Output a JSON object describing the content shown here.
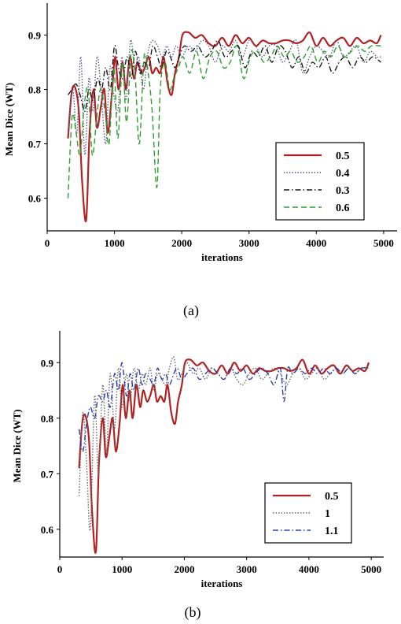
{
  "chart_data": [
    {
      "type": "line",
      "caption": "(a)",
      "xlabel": "iterations",
      "ylabel": "Mean Dice (WT)",
      "xlim": [
        0,
        5200
      ],
      "ylim": [
        0.54,
        0.95
      ],
      "xticks": [
        0,
        1000,
        2000,
        3000,
        4000,
        5000
      ],
      "yticks": [
        0.6,
        0.7,
        0.8,
        0.9
      ],
      "legend": "bottom-right",
      "series": [
        {
          "name": "0.5",
          "color": "#b22222",
          "dash": "solid",
          "x": [
            310,
            360,
            410,
            470,
            520,
            580,
            630,
            690,
            740,
            800,
            850,
            900,
            960,
            1010,
            1060,
            1120,
            1170,
            1230,
            1290,
            1340,
            1400,
            1450,
            1510,
            1560,
            1620,
            1680,
            1730,
            1790,
            1850,
            1900,
            1960,
            2010,
            2100,
            2200,
            2300,
            2400,
            2500,
            2600,
            2700,
            2800,
            2900,
            3000,
            3100,
            3200,
            3300,
            3400,
            3500,
            3600,
            3700,
            3800,
            3900,
            4000,
            4100,
            4200,
            4300,
            4400,
            4500,
            4600,
            4700,
            4800,
            4900,
            4960
          ],
          "y": [
            0.71,
            0.79,
            0.805,
            0.76,
            0.63,
            0.56,
            0.72,
            0.8,
            0.73,
            0.77,
            0.8,
            0.72,
            0.79,
            0.86,
            0.8,
            0.85,
            0.8,
            0.86,
            0.82,
            0.85,
            0.83,
            0.84,
            0.86,
            0.83,
            0.84,
            0.83,
            0.86,
            0.81,
            0.79,
            0.83,
            0.86,
            0.9,
            0.905,
            0.895,
            0.9,
            0.885,
            0.88,
            0.895,
            0.88,
            0.9,
            0.885,
            0.895,
            0.88,
            0.89,
            0.885,
            0.885,
            0.89,
            0.89,
            0.885,
            0.89,
            0.905,
            0.88,
            0.895,
            0.88,
            0.89,
            0.895,
            0.88,
            0.895,
            0.885,
            0.89,
            0.885,
            0.9
          ]
        },
        {
          "name": "0.4",
          "color": "#5b5b8f",
          "dash": "dotted",
          "x": [
            310,
            380,
            440,
            500,
            560,
            620,
            680,
            740,
            800,
            870,
            930,
            990,
            1050,
            1110,
            1170,
            1240,
            1300,
            1360,
            1430,
            1500,
            1570,
            1640,
            1710,
            1780,
            1850,
            1920,
            2000,
            2100,
            2200,
            2300,
            2400,
            2500,
            2600,
            2700,
            2800,
            2900,
            3000,
            3100,
            3200,
            3300,
            3400,
            3500,
            3600,
            3700,
            3800,
            3900,
            4000,
            4100,
            4200,
            4300,
            4400,
            4500,
            4600,
            4700,
            4800,
            4900,
            4960
          ],
          "y": [
            0.72,
            0.8,
            0.72,
            0.86,
            0.68,
            0.82,
            0.76,
            0.86,
            0.8,
            0.7,
            0.84,
            0.79,
            0.76,
            0.86,
            0.78,
            0.89,
            0.84,
            0.86,
            0.8,
            0.87,
            0.89,
            0.88,
            0.86,
            0.88,
            0.86,
            0.88,
            0.86,
            0.88,
            0.87,
            0.89,
            0.88,
            0.85,
            0.88,
            0.87,
            0.89,
            0.86,
            0.89,
            0.88,
            0.86,
            0.88,
            0.88,
            0.85,
            0.87,
            0.89,
            0.83,
            0.86,
            0.88,
            0.87,
            0.86,
            0.89,
            0.86,
            0.87,
            0.88,
            0.85,
            0.87,
            0.86,
            0.86
          ]
        },
        {
          "name": "0.3",
          "color": "#1a1a1a",
          "dash": "dashdot",
          "x": [
            310,
            370,
            430,
            490,
            560,
            620,
            680,
            750,
            810,
            870,
            940,
            1000,
            1060,
            1120,
            1190,
            1250,
            1310,
            1380,
            1440,
            1510,
            1570,
            1640,
            1700,
            1770,
            1830,
            1900,
            1960,
            2040,
            2140,
            2240,
            2340,
            2440,
            2540,
            2640,
            2740,
            2840,
            2940,
            3040,
            3140,
            3240,
            3340,
            3440,
            3540,
            3640,
            3740,
            3840,
            3940,
            4040,
            4140,
            4240,
            4340,
            4440,
            4540,
            4640,
            4740,
            4840,
            4960
          ],
          "y": [
            0.79,
            0.8,
            0.81,
            0.79,
            0.76,
            0.8,
            0.78,
            0.82,
            0.8,
            0.84,
            0.8,
            0.88,
            0.84,
            0.82,
            0.86,
            0.82,
            0.87,
            0.83,
            0.85,
            0.84,
            0.88,
            0.86,
            0.84,
            0.87,
            0.86,
            0.84,
            0.86,
            0.88,
            0.87,
            0.88,
            0.86,
            0.87,
            0.89,
            0.86,
            0.87,
            0.88,
            0.84,
            0.87,
            0.86,
            0.88,
            0.85,
            0.88,
            0.87,
            0.84,
            0.86,
            0.83,
            0.85,
            0.84,
            0.86,
            0.83,
            0.85,
            0.86,
            0.84,
            0.86,
            0.85,
            0.86,
            0.85
          ]
        },
        {
          "name": "0.6",
          "color": "#2e9e2e",
          "dash": "dashed",
          "x": [
            310,
            370,
            430,
            490,
            550,
            610,
            670,
            730,
            790,
            860,
            920,
            990,
            1050,
            1120,
            1180,
            1250,
            1310,
            1370,
            1440,
            1500,
            1560,
            1630,
            1680,
            1750,
            1820,
            1880,
            1950,
            2020,
            2120,
            2220,
            2320,
            2420,
            2520,
            2620,
            2720,
            2820,
            2920,
            3020,
            3120,
            3220,
            3320,
            3420,
            3520,
            3620,
            3720,
            3820,
            3920,
            4020,
            4120,
            4220,
            4320,
            4420,
            4520,
            4620,
            4720,
            4820,
            4960
          ],
          "y": [
            0.6,
            0.75,
            0.72,
            0.68,
            0.77,
            0.8,
            0.68,
            0.74,
            0.8,
            0.76,
            0.7,
            0.84,
            0.71,
            0.85,
            0.74,
            0.87,
            0.82,
            0.7,
            0.86,
            0.83,
            0.76,
            0.62,
            0.8,
            0.85,
            0.8,
            0.82,
            0.84,
            0.86,
            0.83,
            0.87,
            0.82,
            0.86,
            0.87,
            0.84,
            0.85,
            0.88,
            0.82,
            0.86,
            0.87,
            0.85,
            0.86,
            0.88,
            0.86,
            0.87,
            0.85,
            0.86,
            0.88,
            0.85,
            0.87,
            0.86,
            0.88,
            0.86,
            0.87,
            0.88,
            0.87,
            0.88,
            0.88
          ]
        }
      ]
    },
    {
      "type": "line",
      "caption": "(b)",
      "xlabel": "iterations",
      "ylabel": "Mean Dice (WT)",
      "xlim": [
        0,
        5200
      ],
      "ylim": [
        0.55,
        0.95
      ],
      "xticks": [
        0,
        1000,
        2000,
        3000,
        4000,
        5000
      ],
      "yticks": [
        0.6,
        0.7,
        0.8,
        0.9
      ],
      "legend": "bottom-right",
      "series": [
        {
          "name": "0.5",
          "color": "#b22222",
          "dash": "solid",
          "x": [
            310,
            360,
            410,
            470,
            520,
            580,
            630,
            690,
            740,
            800,
            850,
            900,
            960,
            1010,
            1060,
            1120,
            1170,
            1230,
            1290,
            1340,
            1400,
            1450,
            1510,
            1560,
            1620,
            1680,
            1730,
            1790,
            1850,
            1900,
            1960,
            2010,
            2100,
            2200,
            2300,
            2400,
            2500,
            2600,
            2700,
            2800,
            2900,
            3000,
            3100,
            3200,
            3300,
            3400,
            3500,
            3600,
            3700,
            3800,
            3900,
            4000,
            4100,
            4200,
            4300,
            4400,
            4500,
            4600,
            4700,
            4800,
            4900,
            4960
          ],
          "y": [
            0.71,
            0.79,
            0.805,
            0.76,
            0.63,
            0.56,
            0.72,
            0.8,
            0.73,
            0.77,
            0.8,
            0.74,
            0.79,
            0.86,
            0.8,
            0.85,
            0.8,
            0.86,
            0.82,
            0.85,
            0.83,
            0.84,
            0.86,
            0.83,
            0.84,
            0.83,
            0.86,
            0.81,
            0.79,
            0.83,
            0.86,
            0.9,
            0.905,
            0.895,
            0.9,
            0.885,
            0.88,
            0.895,
            0.88,
            0.9,
            0.885,
            0.895,
            0.88,
            0.89,
            0.885,
            0.885,
            0.89,
            0.89,
            0.885,
            0.89,
            0.905,
            0.88,
            0.895,
            0.88,
            0.89,
            0.895,
            0.88,
            0.895,
            0.885,
            0.89,
            0.885,
            0.9
          ]
        },
        {
          "name": "1",
          "color": "#6b6b6b",
          "dash": "dotted",
          "x": [
            310,
            370,
            430,
            490,
            560,
            620,
            690,
            750,
            810,
            880,
            940,
            1000,
            1070,
            1130,
            1190,
            1260,
            1320,
            1380,
            1450,
            1510,
            1570,
            1640,
            1700,
            1760,
            1830,
            1890,
            1960,
            2040,
            2140,
            2240,
            2340,
            2440,
            2540,
            2640,
            2740,
            2840,
            2940,
            3040,
            3140,
            3240,
            3340,
            3440,
            3540,
            3640,
            3740,
            3840,
            3940,
            4040,
            4140,
            4240,
            4340,
            4440,
            4540,
            4640,
            4740,
            4840,
            4960
          ],
          "y": [
            0.66,
            0.81,
            0.72,
            0.6,
            0.84,
            0.7,
            0.86,
            0.74,
            0.88,
            0.78,
            0.89,
            0.82,
            0.88,
            0.83,
            0.89,
            0.85,
            0.88,
            0.86,
            0.89,
            0.85,
            0.88,
            0.87,
            0.86,
            0.89,
            0.91,
            0.87,
            0.88,
            0.9,
            0.88,
            0.89,
            0.87,
            0.89,
            0.88,
            0.87,
            0.89,
            0.87,
            0.86,
            0.88,
            0.89,
            0.87,
            0.88,
            0.89,
            0.88,
            0.86,
            0.88,
            0.89,
            0.87,
            0.88,
            0.89,
            0.87,
            0.88,
            0.89,
            0.88,
            0.89,
            0.88,
            0.89,
            0.89
          ]
        },
        {
          "name": "1.1",
          "color": "#2f3fa8",
          "dash": "dashdot",
          "x": [
            310,
            370,
            430,
            490,
            560,
            620,
            690,
            750,
            810,
            880,
            940,
            1000,
            1070,
            1130,
            1190,
            1260,
            1320,
            1380,
            1450,
            1510,
            1570,
            1640,
            1700,
            1760,
            1830,
            1890,
            1960,
            2040,
            2140,
            2240,
            2340,
            2440,
            2540,
            2640,
            2740,
            2840,
            2940,
            3040,
            3140,
            3240,
            3340,
            3440,
            3540,
            3600,
            3660,
            3740,
            3840,
            3940,
            4040,
            4140,
            4240,
            4340,
            4440,
            4540,
            4640,
            4740,
            4840,
            4960
          ],
          "y": [
            0.78,
            0.74,
            0.79,
            0.82,
            0.8,
            0.84,
            0.83,
            0.85,
            0.82,
            0.88,
            0.85,
            0.9,
            0.84,
            0.88,
            0.85,
            0.89,
            0.86,
            0.88,
            0.87,
            0.86,
            0.89,
            0.87,
            0.88,
            0.86,
            0.88,
            0.89,
            0.87,
            0.88,
            0.89,
            0.87,
            0.88,
            0.89,
            0.88,
            0.87,
            0.89,
            0.88,
            0.89,
            0.87,
            0.88,
            0.89,
            0.88,
            0.86,
            0.89,
            0.83,
            0.89,
            0.88,
            0.89,
            0.88,
            0.89,
            0.88,
            0.89,
            0.88,
            0.89,
            0.88,
            0.89,
            0.88,
            0.89,
            0.89
          ]
        }
      ]
    }
  ]
}
